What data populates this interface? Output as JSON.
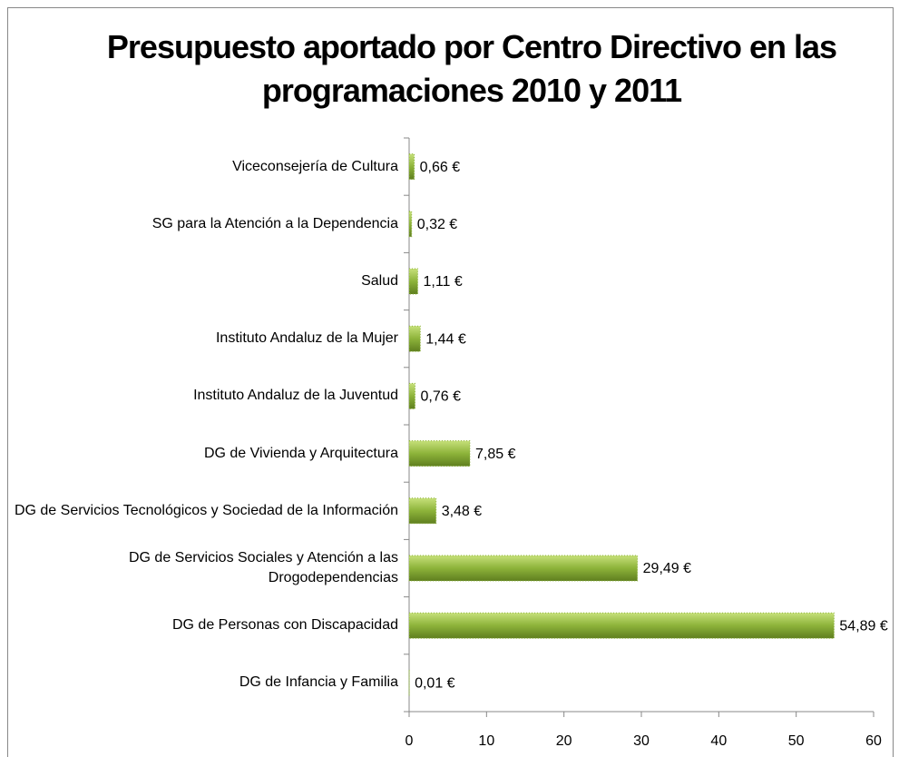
{
  "chart_data": {
    "type": "bar",
    "orientation": "horizontal",
    "title": "Presupuesto aportado por Centro Directivo en las programaciones 2010 y 2011",
    "categories": [
      "Viceconsejería de Cultura",
      "SG para la Atención a la Dependencia",
      "Salud",
      "Instituto Andaluz de la Mujer",
      "Instituto Andaluz de la Juventud",
      "DG de Vivienda y Arquitectura",
      "DG de Servicios Tecnológicos y Sociedad de la Información",
      "DG de Servicios Sociales y Atención a las Drogodependencias",
      "DG de Personas con Discapacidad",
      "DG de Infancia y Familia"
    ],
    "values": [
      0.66,
      0.32,
      1.11,
      1.44,
      0.76,
      7.85,
      3.48,
      29.49,
      54.89,
      0.01
    ],
    "value_labels": [
      "0,66 €",
      "0,32 €",
      "1,11 €",
      "1,44 €",
      "0,76 €",
      "7,85 €",
      "3,48 €",
      "29,49 €",
      "54,89 €",
      "0,01 €"
    ],
    "color": "#8db33a",
    "xlim": [
      0,
      60
    ],
    "xticks": [
      0,
      10,
      20,
      30,
      40,
      50,
      60
    ]
  }
}
